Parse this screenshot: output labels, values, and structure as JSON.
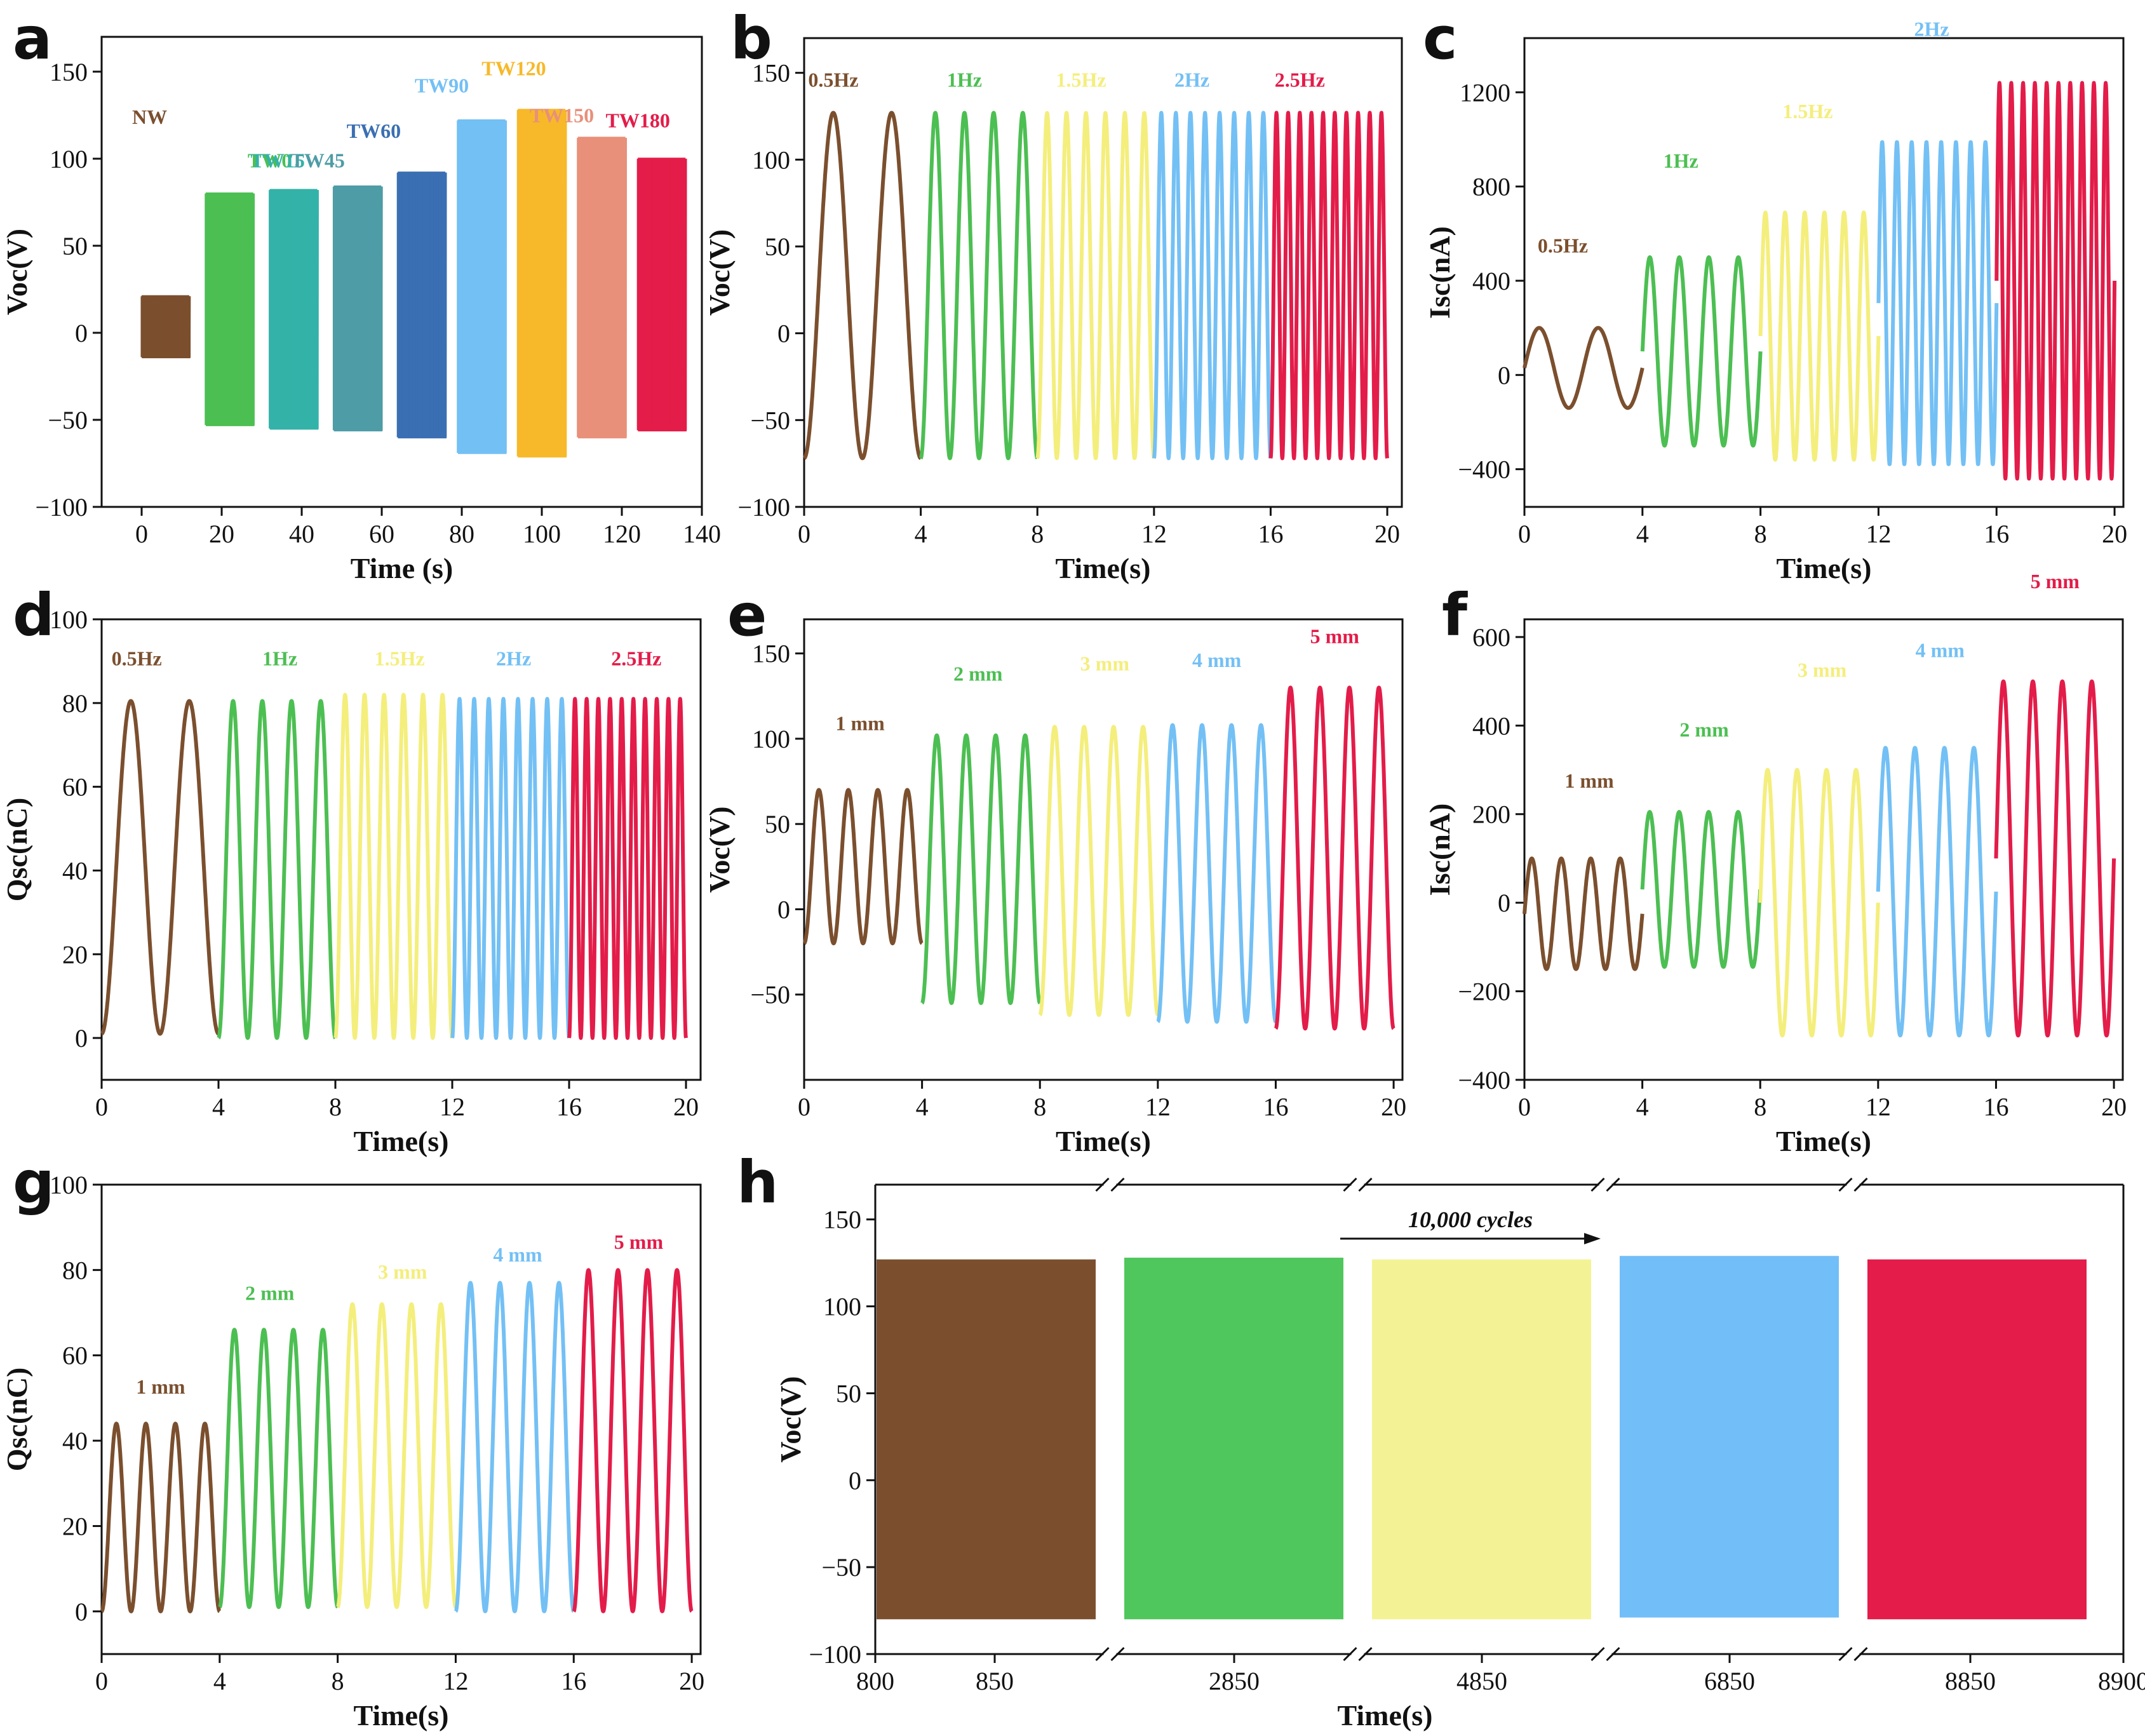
{
  "colors": {
    "brown": "#7B4F2E",
    "green": "#4CBF52",
    "teal": "#33B2A8",
    "slate": "#4E9CA6",
    "blue": "#3A6FB3",
    "lightblue": "#73C0F5",
    "gold": "#F7B92A",
    "salmon": "#E8907A",
    "crimson": "#E31C49",
    "yellow": "#F4EE7C",
    "hblue": "#72BEF8",
    "hgreen": "#4FC75C",
    "hyellow": "#F3F396"
  },
  "chart_data": [
    {
      "panel": "a",
      "type": "line",
      "xlabel": "Time (s)",
      "ylabel": "Voc(V)",
      "xlim": [
        -10,
        140
      ],
      "ylim": [
        -100,
        170
      ],
      "xticks": [
        0,
        20,
        40,
        60,
        80,
        100,
        120,
        140
      ],
      "yticks": [
        -100,
        -50,
        0,
        50,
        100,
        150
      ],
      "series": [
        {
          "name": "NW",
          "x": [
            0,
            12
          ],
          "high": 21,
          "low": -14,
          "color": "brown"
        },
        {
          "name": "TW0",
          "x": [
            16,
            28
          ],
          "high": 80,
          "low": -53,
          "color": "green"
        },
        {
          "name": "TW15",
          "x": [
            32,
            44
          ],
          "high": 82,
          "low": -55,
          "color": "teal"
        },
        {
          "name": "TW45",
          "x": [
            48,
            60
          ],
          "high": 84,
          "low": -56,
          "color": "slate"
        },
        {
          "name": "TW60",
          "x": [
            64,
            76
          ],
          "high": 92,
          "low": -60,
          "color": "blue"
        },
        {
          "name": "TW90",
          "x": [
            79,
            91
          ],
          "high": 122,
          "low": -69,
          "color": "lightblue"
        },
        {
          "name": "TW120",
          "x": [
            94,
            106
          ],
          "high": 128,
          "low": -71,
          "color": "gold"
        },
        {
          "name": "TW150",
          "x": [
            109,
            121
          ],
          "high": 112,
          "low": -60,
          "color": "salmon"
        },
        {
          "name": "TW180",
          "x": [
            124,
            136
          ],
          "high": 100,
          "low": -56,
          "color": "crimson"
        }
      ]
    },
    {
      "panel": "b",
      "type": "line",
      "xlabel": "Time(s)",
      "ylabel": "Voc(V)",
      "xlim": [
        0,
        20.5
      ],
      "ylim": [
        -100,
        170
      ],
      "xticks": [
        0,
        4,
        8,
        12,
        16,
        20
      ],
      "yticks": [
        -100,
        -50,
        0,
        50,
        100,
        150
      ],
      "series": [
        {
          "name": "0.5Hz",
          "x": [
            0,
            4
          ],
          "freq": 0.5,
          "high": 127,
          "low": -72,
          "color": "brown"
        },
        {
          "name": "1Hz",
          "x": [
            4,
            8
          ],
          "freq": 1,
          "high": 127,
          "low": -72,
          "color": "green"
        },
        {
          "name": "1.5Hz",
          "x": [
            8,
            12
          ],
          "freq": 1.5,
          "high": 127,
          "low": -72,
          "color": "yellow"
        },
        {
          "name": "2Hz",
          "x": [
            12,
            16
          ],
          "freq": 2,
          "high": 127,
          "low": -72,
          "color": "lightblue"
        },
        {
          "name": "2.5Hz",
          "x": [
            16,
            20
          ],
          "freq": 2.5,
          "high": 127,
          "low": -72,
          "color": "crimson"
        }
      ]
    },
    {
      "panel": "c",
      "type": "line",
      "xlabel": "Time(s)",
      "ylabel": "Isc(nA)",
      "xlim": [
        0,
        20.3
      ],
      "ylim": [
        -560,
        1430
      ],
      "xticks": [
        0,
        4,
        8,
        12,
        16,
        20
      ],
      "yticks": [
        -400,
        0,
        400,
        800,
        1200
      ],
      "series": [
        {
          "name": "0.5Hz",
          "x": [
            0,
            4
          ],
          "freq": 0.5,
          "high": 200,
          "low": -140,
          "color": "brown"
        },
        {
          "name": "1Hz",
          "x": [
            4,
            8
          ],
          "freq": 1,
          "high": 500,
          "low": -300,
          "color": "green"
        },
        {
          "name": "1.5Hz",
          "x": [
            8,
            12
          ],
          "freq": 1.5,
          "high": 690,
          "low": -360,
          "color": "yellow"
        },
        {
          "name": "2Hz",
          "x": [
            12,
            16
          ],
          "freq": 2,
          "high": 990,
          "low": -380,
          "color": "lightblue"
        },
        {
          "name": "2.5Hz",
          "x": [
            16,
            20
          ],
          "freq": 2.5,
          "high": 1240,
          "low": -440,
          "color": "crimson"
        }
      ]
    },
    {
      "panel": "d",
      "type": "line",
      "xlabel": "Time(s)",
      "ylabel": "Qsc(nC)",
      "xlim": [
        0,
        20.5
      ],
      "ylim": [
        -10,
        100
      ],
      "xticks": [
        0,
        4,
        8,
        12,
        16,
        20
      ],
      "yticks": [
        0,
        20,
        40,
        60,
        80,
        100
      ],
      "series": [
        {
          "name": "0.5Hz",
          "x": [
            0,
            4
          ],
          "freq": 0.5,
          "high": 80.5,
          "low": 1,
          "color": "brown"
        },
        {
          "name": "1Hz",
          "x": [
            4,
            8
          ],
          "freq": 1,
          "high": 80.5,
          "low": 0,
          "color": "green"
        },
        {
          "name": "1.5Hz",
          "x": [
            8,
            12
          ],
          "freq": 1.5,
          "high": 82,
          "low": 0,
          "color": "yellow"
        },
        {
          "name": "2Hz",
          "x": [
            12,
            16
          ],
          "freq": 2,
          "high": 81,
          "low": 0,
          "color": "lightblue"
        },
        {
          "name": "2.5Hz",
          "x": [
            16,
            20
          ],
          "freq": 2.5,
          "high": 81,
          "low": 0,
          "color": "crimson"
        }
      ]
    },
    {
      "panel": "e",
      "type": "line",
      "xlabel": "Time(s)",
      "ylabel": "Voc(V)",
      "xlim": [
        0,
        20.3
      ],
      "ylim": [
        -100,
        170
      ],
      "xticks": [
        0,
        4,
        8,
        12,
        16,
        20
      ],
      "yticks": [
        -50,
        0,
        50,
        100,
        150
      ],
      "series": [
        {
          "name": "1 mm",
          "x": [
            0,
            4
          ],
          "freq": 1,
          "high": 70,
          "low": -20,
          "color": "brown"
        },
        {
          "name": "2 mm",
          "x": [
            4,
            8
          ],
          "freq": 1,
          "high": 102,
          "low": -55,
          "color": "green"
        },
        {
          "name": "3 mm",
          "x": [
            8,
            12
          ],
          "freq": 1,
          "high": 107,
          "low": -62,
          "color": "yellow"
        },
        {
          "name": "4 mm",
          "x": [
            12,
            16
          ],
          "freq": 1,
          "high": 108,
          "low": -66,
          "color": "lightblue"
        },
        {
          "name": "5 mm",
          "x": [
            16,
            20
          ],
          "freq": 1,
          "high": 130,
          "low": -70,
          "color": "crimson"
        }
      ]
    },
    {
      "panel": "f",
      "type": "line",
      "xlabel": "Time(s)",
      "ylabel": "Isc(nA)",
      "xlim": [
        0,
        20.3
      ],
      "ylim": [
        -400,
        640
      ],
      "xticks": [
        0,
        4,
        8,
        12,
        16,
        20
      ],
      "yticks": [
        -400,
        -200,
        0,
        200,
        400,
        600
      ],
      "series": [
        {
          "name": "1 mm",
          "x": [
            0,
            4
          ],
          "freq": 1,
          "high": 100,
          "low": -150,
          "color": "brown"
        },
        {
          "name": "2 mm",
          "x": [
            4,
            8
          ],
          "freq": 1,
          "high": 205,
          "low": -145,
          "color": "green"
        },
        {
          "name": "3 mm",
          "x": [
            8,
            12
          ],
          "freq": 1,
          "high": 300,
          "low": -300,
          "color": "yellow"
        },
        {
          "name": "4 mm",
          "x": [
            12,
            16
          ],
          "freq": 1,
          "high": 350,
          "low": -300,
          "color": "lightblue"
        },
        {
          "name": "5 mm",
          "x": [
            16,
            20
          ],
          "freq": 1,
          "high": 500,
          "low": -300,
          "color": "crimson"
        }
      ]
    },
    {
      "panel": "g",
      "type": "line",
      "xlabel": "Time(s)",
      "ylabel": "Qsc(nC)",
      "xlim": [
        0,
        20.3
      ],
      "ylim": [
        -10,
        100
      ],
      "xticks": [
        0,
        4,
        8,
        12,
        16,
        20
      ],
      "yticks": [
        0,
        20,
        40,
        60,
        80,
        100
      ],
      "series": [
        {
          "name": "1 mm",
          "x": [
            0,
            4
          ],
          "freq": 1,
          "high": 44,
          "low": 0,
          "color": "brown"
        },
        {
          "name": "2 mm",
          "x": [
            4,
            8
          ],
          "freq": 1,
          "high": 66,
          "low": 1,
          "color": "green"
        },
        {
          "name": "3 mm",
          "x": [
            8,
            12
          ],
          "freq": 1,
          "high": 72,
          "low": 1,
          "color": "yellow"
        },
        {
          "name": "4 mm",
          "x": [
            12,
            16
          ],
          "freq": 1,
          "high": 77,
          "low": 0,
          "color": "lightblue"
        },
        {
          "name": "5 mm",
          "x": [
            16,
            20
          ],
          "freq": 1,
          "high": 80,
          "low": 0,
          "color": "crimson"
        }
      ]
    },
    {
      "panel": "h",
      "type": "area",
      "xlabel": "Time(s)",
      "ylabel": "Voc(V)",
      "ylim": [
        -100,
        170
      ],
      "yticks": [
        -100,
        -50,
        0,
        50,
        100,
        150
      ],
      "xticklabels": [
        "800",
        "850",
        "2850",
        "4850",
        "6850",
        "8850",
        "8900"
      ],
      "annotation": "10,000 cycles",
      "segments": [
        {
          "range": [
            800,
            900
          ],
          "high": 127,
          "low": -80,
          "color": "brown"
        },
        {
          "range": [
            2800,
            2900
          ],
          "high": 128,
          "low": -80,
          "color": "hgreen"
        },
        {
          "range": [
            4800,
            4900
          ],
          "high": 127,
          "low": -80,
          "color": "hyellow"
        },
        {
          "range": [
            6800,
            6900
          ],
          "high": 129,
          "low": -79,
          "color": "hblue"
        },
        {
          "range": [
            8800,
            8900
          ],
          "high": 127,
          "low": -80,
          "color": "crimson"
        }
      ]
    }
  ]
}
